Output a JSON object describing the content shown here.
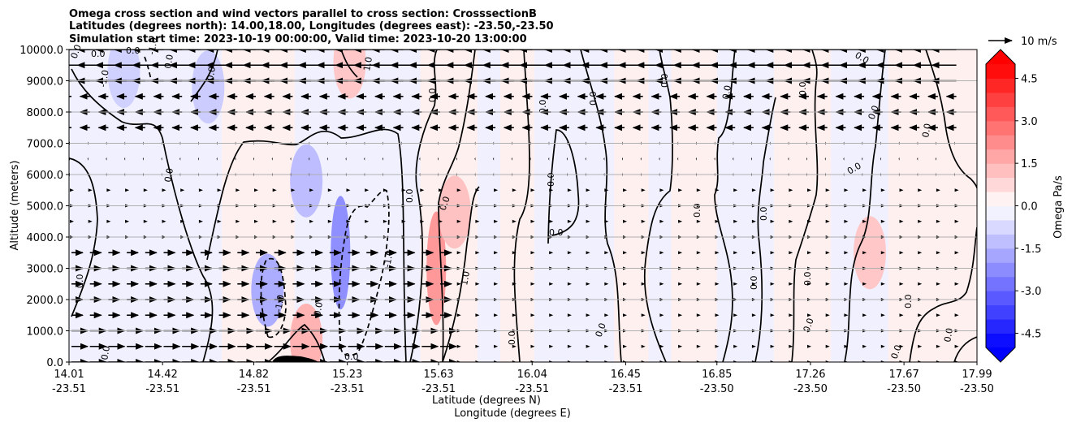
{
  "chart_data": {
    "type": "contour",
    "title_lines": [
      "Omega cross section and wind vectors parallel to cross section: CrosssectionB",
      "Latitudes (degrees north): 14.00,18.00, Longitudes (degrees east): -23.50,-23.50",
      "Simulation start time: 2023-10-19 00:00:00, Valid time: 2023-10-20 13:00:00"
    ],
    "ylabel": "Altitude (meters)",
    "xlabel_lines": [
      "Latitude (degrees N)",
      "Longitude (degrees E)"
    ],
    "ylim": [
      0,
      10000
    ],
    "y_ticks": [
      "0.0",
      "1000.0",
      "2000.0",
      "3000.0",
      "4000.0",
      "5000.0",
      "6000.0",
      "7000.0",
      "8000.0",
      "9000.0",
      "10000.0"
    ],
    "y_tick_values": [
      0,
      1000,
      2000,
      3000,
      4000,
      5000,
      6000,
      7000,
      8000,
      9000,
      10000
    ],
    "x_ticks": [
      {
        "lat": "14.01",
        "lon": "-23.51"
      },
      {
        "lat": "14.42",
        "lon": "-23.51"
      },
      {
        "lat": "14.82",
        "lon": "-23.51"
      },
      {
        "lat": "15.23",
        "lon": "-23.51"
      },
      {
        "lat": "15.63",
        "lon": "-23.51"
      },
      {
        "lat": "16.04",
        "lon": "-23.51"
      },
      {
        "lat": "16.45",
        "lon": "-23.51"
      },
      {
        "lat": "16.85",
        "lon": "-23.50"
      },
      {
        "lat": "17.26",
        "lon": "-23.50"
      },
      {
        "lat": "17.67",
        "lon": "-23.50"
      },
      {
        "lat": "17.99",
        "lon": "-23.50"
      }
    ],
    "x_tick_lat_values": [
      14.01,
      14.42,
      14.82,
      15.23,
      15.63,
      16.04,
      16.45,
      16.85,
      17.26,
      17.67,
      17.99
    ],
    "xlim": [
      14.01,
      17.99
    ],
    "colorbar": {
      "label": "Omega Pa/s",
      "ticks": [
        "-4.5",
        "-3.0",
        "-1.5",
        "0.0",
        "1.5",
        "3.0",
        "4.5"
      ],
      "tick_values": [
        -4.5,
        -3.0,
        -1.5,
        0.0,
        1.5,
        3.0,
        4.5
      ],
      "range": [
        -5,
        5
      ],
      "levels": 20,
      "colormap": "bwr",
      "extend": "both"
    },
    "quiver_key": {
      "label": "10 m/s",
      "speed": 10
    },
    "contour_levels": [
      -1.0,
      0.0,
      1.0
    ],
    "contour_labels": [
      "0.0",
      "-1.0",
      "1.0"
    ],
    "grid": "horizontal",
    "omega_regions": [
      {
        "lat": 15.62,
        "alt": 3000,
        "value": 2.0
      },
      {
        "lat": 15.7,
        "alt": 4800,
        "value": 1.2
      },
      {
        "lat": 15.24,
        "alt": 9600,
        "value": 1.1
      },
      {
        "lat": 15.2,
        "alt": 3500,
        "value": -2.2
      },
      {
        "lat": 15.05,
        "alt": 5800,
        "value": -1.3
      },
      {
        "lat": 14.88,
        "alt": 2300,
        "value": -1.6
      },
      {
        "lat": 17.52,
        "alt": 3500,
        "value": 1.1
      },
      {
        "lat": 15.05,
        "alt": 700,
        "value": 1.5
      },
      {
        "lat": 14.62,
        "alt": 8800,
        "value": -1.0
      },
      {
        "lat": 14.25,
        "alt": 9300,
        "value": -0.9
      }
    ]
  },
  "colors": {
    "negative": "#0000ff",
    "positive": "#ff0000",
    "contour": "#000000",
    "grid": "#b0b0b0"
  }
}
